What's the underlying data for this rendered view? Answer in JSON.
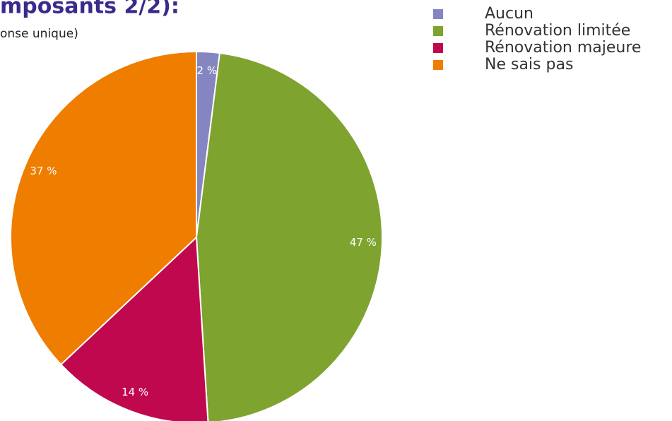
{
  "chart_data": {
    "type": "pie",
    "title": "mposants 2/2):",
    "subtitle": "onse unique)",
    "categories": [
      "Aucun",
      "Rénovation limitée",
      "Rénovation majeure",
      "Ne sais pas"
    ],
    "values": [
      2,
      47,
      14,
      37
    ],
    "value_labels": [
      "2 %",
      "47 %",
      "14 %",
      "37 %"
    ],
    "colors": [
      "#8585c2",
      "#7ea32f",
      "#c0084f",
      "#ef7d00"
    ],
    "legend": "top-right"
  }
}
